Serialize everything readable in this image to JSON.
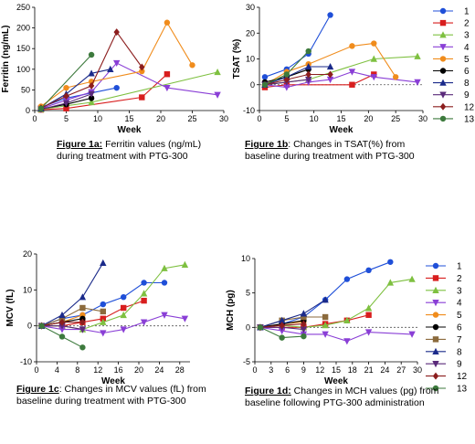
{
  "colors": {
    "1": "#1f4fd8",
    "2": "#d81e1e",
    "3": "#7ec040",
    "4": "#8a3fd6",
    "5": "#f08c1c",
    "6": "#000000",
    "7": "#8b6a3c",
    "8": "#1a2a8a",
    "9": "#5a2a7a",
    "12": "#8c1e1e",
    "13": "#3d7a3d"
  },
  "markers": {
    "1": "circle",
    "2": "square",
    "3": "triangle-up",
    "4": "triangle-down",
    "5": "circle",
    "6": "circle",
    "7": "square",
    "8": "triangle-up",
    "9": "triangle-down",
    "12": "diamond",
    "13": "circle"
  },
  "legend_top": {
    "entries": [
      "1",
      "2",
      "3",
      "4",
      "5",
      "6",
      "8",
      "9",
      "12",
      "13"
    ]
  },
  "legend_bottom": {
    "entries": [
      "1",
      "2",
      "3",
      "4",
      "5",
      "6",
      "7",
      "8",
      "9",
      "12",
      "13"
    ]
  },
  "captions": {
    "a": {
      "fig": "Figure 1a:",
      "text": " Ferritin values (ng/mL) during treatment with PTG-300"
    },
    "b": {
      "fig": "Figure 1b",
      "text": ": Changes in TSAT(%) from baseline during treatment with PTG-300"
    },
    "c": {
      "fig": "Figure 1c",
      "text": ": Changes in MCV values (fL) from baseline during treatment with PTG-300"
    },
    "d": {
      "fig": "Figure 1d:",
      "text": " Changes in MCH values (pg) from baseline following PTG-300 administration"
    }
  },
  "chart_data": [
    {
      "type": "line",
      "id": "a",
      "xlabel": "Week",
      "ylabel": "Ferritin (ng/mL)",
      "xlim": [
        0,
        30
      ],
      "ylim": [
        0,
        250
      ],
      "xticks": [
        0,
        5,
        10,
        15,
        20,
        25,
        30
      ],
      "yticks": [
        0,
        50,
        100,
        150,
        200,
        250
      ],
      "zero_line": false,
      "series": [
        {
          "name": "1",
          "x": [
            1,
            5,
            13
          ],
          "y": [
            8,
            30,
            55
          ]
        },
        {
          "name": "2",
          "x": [
            1,
            5,
            17,
            21
          ],
          "y": [
            2,
            5,
            32,
            88
          ]
        },
        {
          "name": "3",
          "x": [
            1,
            9,
            29
          ],
          "y": [
            3,
            20,
            93
          ]
        },
        {
          "name": "4",
          "x": [
            1,
            5,
            9,
            13,
            21,
            29
          ],
          "y": [
            5,
            25,
            45,
            115,
            55,
            38
          ]
        },
        {
          "name": "5",
          "x": [
            1,
            5,
            9,
            17,
            21,
            25
          ],
          "y": [
            10,
            55,
            70,
            95,
            213,
            110
          ]
        },
        {
          "name": "6",
          "x": [
            1,
            5,
            9
          ],
          "y": [
            4,
            15,
            30
          ]
        },
        {
          "name": "8",
          "x": [
            1,
            5,
            9,
            12
          ],
          "y": [
            5,
            40,
            90,
            100
          ]
        },
        {
          "name": "9",
          "x": [
            1,
            5,
            9
          ],
          "y": [
            3,
            18,
            40
          ]
        },
        {
          "name": "12",
          "x": [
            1,
            5,
            9,
            13,
            17
          ],
          "y": [
            6,
            35,
            60,
            190,
            105
          ]
        },
        {
          "name": "13",
          "x": [
            1,
            9
          ],
          "y": [
            5,
            135
          ]
        }
      ]
    },
    {
      "type": "line",
      "id": "b",
      "xlabel": "Week",
      "ylabel": "TSAT (%)",
      "xlim": [
        0,
        30
      ],
      "ylim": [
        -10,
        30
      ],
      "xticks": [
        0,
        5,
        10,
        15,
        20,
        25,
        30
      ],
      "yticks": [
        -10,
        0,
        10,
        20,
        30
      ],
      "zero_line": true,
      "series": [
        {
          "name": "1",
          "x": [
            1,
            5,
            9,
            13
          ],
          "y": [
            3,
            6,
            12,
            27
          ]
        },
        {
          "name": "2",
          "x": [
            1,
            5,
            17,
            21
          ],
          "y": [
            -1,
            0,
            0,
            4
          ]
        },
        {
          "name": "3",
          "x": [
            1,
            9,
            21,
            29
          ],
          "y": [
            0,
            2,
            10,
            11
          ]
        },
        {
          "name": "4",
          "x": [
            1,
            5,
            9,
            13,
            17,
            21,
            29
          ],
          "y": [
            0,
            -1,
            1,
            2,
            5,
            3,
            1
          ]
        },
        {
          "name": "5",
          "x": [
            1,
            5,
            9,
            17,
            21,
            25
          ],
          "y": [
            0,
            5,
            8,
            15,
            16,
            3
          ]
        },
        {
          "name": "6",
          "x": [
            1,
            5,
            9
          ],
          "y": [
            1,
            3,
            6
          ]
        },
        {
          "name": "8",
          "x": [
            1,
            5,
            9,
            13
          ],
          "y": [
            0,
            3,
            7,
            7
          ]
        },
        {
          "name": "9",
          "x": [
            1,
            5,
            9
          ],
          "y": [
            0,
            1,
            2
          ]
        },
        {
          "name": "12",
          "x": [
            1,
            5,
            9,
            13
          ],
          "y": [
            0,
            2,
            4,
            4
          ]
        },
        {
          "name": "13",
          "x": [
            1,
            5,
            9
          ],
          "y": [
            0,
            4,
            13
          ]
        }
      ]
    },
    {
      "type": "line",
      "id": "c",
      "xlabel": "Week",
      "ylabel": "MCV (fL)",
      "xlim": [
        0,
        30
      ],
      "ylim": [
        -10,
        20
      ],
      "xticks": [
        0,
        4,
        8,
        12,
        16,
        20,
        24,
        28
      ],
      "yticks": [
        -10,
        0,
        10,
        20
      ],
      "zero_line": true,
      "series": [
        {
          "name": "1",
          "x": [
            1,
            5,
            9,
            13,
            17,
            21,
            25
          ],
          "y": [
            0,
            2,
            3,
            6,
            8,
            12,
            12
          ]
        },
        {
          "name": "2",
          "x": [
            1,
            5,
            9,
            13,
            17,
            21
          ],
          "y": [
            0,
            0,
            1,
            2,
            5,
            7
          ]
        },
        {
          "name": "3",
          "x": [
            1,
            5,
            9,
            13,
            17,
            21,
            25,
            29
          ],
          "y": [
            0,
            0,
            -1,
            1,
            3,
            9,
            16,
            17
          ]
        },
        {
          "name": "4",
          "x": [
            1,
            5,
            9,
            13,
            17,
            21,
            25,
            29
          ],
          "y": [
            0,
            -1,
            -1,
            -2,
            -1,
            1,
            3,
            2
          ]
        },
        {
          "name": "5",
          "x": [
            1,
            5,
            9
          ],
          "y": [
            0,
            1,
            3
          ]
        },
        {
          "name": "6",
          "x": [
            1,
            5,
            9
          ],
          "y": [
            0,
            1,
            2
          ]
        },
        {
          "name": "7",
          "x": [
            1,
            5,
            9,
            13
          ],
          "y": [
            0,
            2,
            5,
            4
          ]
        },
        {
          "name": "8",
          "x": [
            1,
            5,
            9,
            13
          ],
          "y": [
            0,
            3,
            8,
            17.5
          ]
        },
        {
          "name": "9",
          "x": [
            1,
            5,
            9
          ],
          "y": [
            0,
            0,
            -1
          ]
        },
        {
          "name": "12",
          "x": [
            1,
            5,
            9
          ],
          "y": [
            0,
            1,
            1
          ]
        },
        {
          "name": "13",
          "x": [
            1,
            5,
            9
          ],
          "y": [
            0,
            -3,
            -6
          ]
        }
      ]
    },
    {
      "type": "line",
      "id": "d",
      "xlabel": "Week",
      "ylabel": "MCH (pg)",
      "xlim": [
        0,
        30
      ],
      "ylim": [
        -5,
        10
      ],
      "xticks": [
        0,
        3,
        6,
        9,
        12,
        15,
        18,
        21,
        24,
        27,
        30
      ],
      "yticks": [
        -5,
        0,
        5,
        10
      ],
      "zero_line": true,
      "series": [
        {
          "name": "1",
          "x": [
            1,
            5,
            9,
            13,
            17,
            21,
            25
          ],
          "y": [
            0,
            0.5,
            1.5,
            4,
            7,
            8.3,
            9.5
          ]
        },
        {
          "name": "2",
          "x": [
            1,
            5,
            9,
            13,
            17,
            21
          ],
          "y": [
            0,
            0,
            0,
            0.5,
            1,
            1.8
          ]
        },
        {
          "name": "3",
          "x": [
            1,
            5,
            9,
            13,
            17,
            21,
            25,
            29
          ],
          "y": [
            0,
            0.3,
            0,
            0.3,
            1,
            2.8,
            6.5,
            7
          ]
        },
        {
          "name": "4",
          "x": [
            1,
            5,
            9,
            13,
            17,
            21,
            29
          ],
          "y": [
            0,
            -0.5,
            -1,
            -1,
            -2,
            -0.7,
            -1
          ]
        },
        {
          "name": "5",
          "x": [
            1,
            5,
            9
          ],
          "y": [
            0,
            0.5,
            0.8
          ]
        },
        {
          "name": "6",
          "x": [
            1,
            5,
            9
          ],
          "y": [
            0,
            0.5,
            1
          ]
        },
        {
          "name": "7",
          "x": [
            1,
            5,
            9,
            13
          ],
          "y": [
            0,
            1,
            1.5,
            1.5
          ]
        },
        {
          "name": "8",
          "x": [
            1,
            5,
            9,
            13
          ],
          "y": [
            0,
            1,
            2,
            4
          ]
        },
        {
          "name": "9",
          "x": [
            1,
            5,
            9
          ],
          "y": [
            0,
            0,
            -0.3
          ]
        },
        {
          "name": "12",
          "x": [
            1,
            5,
            9
          ],
          "y": [
            0,
            0.3,
            0.5
          ]
        },
        {
          "name": "13",
          "x": [
            1,
            5,
            9
          ],
          "y": [
            0,
            -1.5,
            -1.3
          ]
        }
      ]
    }
  ]
}
